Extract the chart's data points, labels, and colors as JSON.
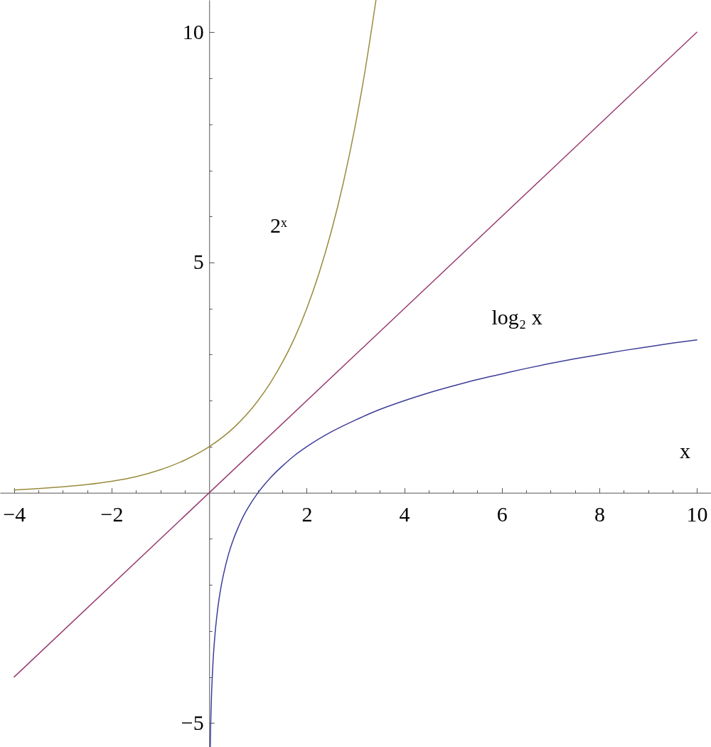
{
  "chart_data": {
    "type": "line",
    "xlabel": "x",
    "xlim": [
      -4.29,
      10.29
    ],
    "ylim": [
      -5.52,
      10.7
    ],
    "xticks": [
      {
        "value": -4,
        "label": "−4"
      },
      {
        "value": -3.5,
        "label": null
      },
      {
        "value": -3,
        "label": null
      },
      {
        "value": -2.5,
        "label": null
      },
      {
        "value": -2,
        "label": "−2"
      },
      {
        "value": -1.5,
        "label": null
      },
      {
        "value": -1,
        "label": null
      },
      {
        "value": -0.5,
        "label": null
      },
      {
        "value": 0.5,
        "label": null
      },
      {
        "value": 1,
        "label": null
      },
      {
        "value": 1.5,
        "label": null
      },
      2,
      {
        "value": 2.5,
        "label": null
      },
      {
        "value": 3,
        "label": null
      },
      {
        "value": 3.5,
        "label": null
      },
      4,
      {
        "value": 4.5,
        "label": null
      },
      {
        "value": 5,
        "label": null
      },
      {
        "value": 5.5,
        "label": null
      },
      6,
      {
        "value": 6.5,
        "label": null
      },
      {
        "value": 7,
        "label": null
      },
      {
        "value": 7.5,
        "label": null
      },
      8,
      {
        "value": 8.5,
        "label": null
      },
      {
        "value": 9,
        "label": null
      },
      {
        "value": 9.5,
        "label": null
      },
      10
    ],
    "yticks": [
      {
        "value": -5,
        "label": "−5"
      },
      {
        "value": -4,
        "label": null
      },
      {
        "value": -3,
        "label": null
      },
      {
        "value": -2,
        "label": null
      },
      {
        "value": -1,
        "label": null
      },
      {
        "value": 1,
        "label": null
      },
      {
        "value": 2,
        "label": null
      },
      {
        "value": 3,
        "label": null
      },
      {
        "value": 4,
        "label": null
      },
      5,
      {
        "value": 6,
        "label": null
      },
      {
        "value": 7,
        "label": null
      },
      {
        "value": 8,
        "label": null
      },
      {
        "value": 9,
        "label": null
      },
      10
    ],
    "series": [
      {
        "name": "log₂ x",
        "color": "#3d3d99",
        "x": [
          0.022,
          0.025,
          0.03,
          0.035,
          0.04,
          0.05,
          0.06,
          0.07,
          0.08,
          0.1,
          0.12,
          0.15,
          0.2,
          0.25,
          0.3,
          0.4,
          0.5,
          0.6,
          0.7,
          0.8,
          1,
          1.25,
          1.5,
          1.75,
          2,
          2.5,
          3,
          3.5,
          4,
          4.5,
          5,
          5.5,
          6,
          6.5,
          7,
          7.5,
          8,
          8.5,
          9,
          9.5,
          10
        ],
        "values": [
          -5.51,
          -5.32,
          -5.06,
          -4.84,
          -4.64,
          -4.32,
          -4.06,
          -3.84,
          -3.64,
          -3.32,
          -3.06,
          -2.74,
          -2.32,
          -2,
          -1.74,
          -1.32,
          -1,
          -0.74,
          -0.51,
          -0.32,
          0,
          0.32,
          0.58,
          0.81,
          1,
          1.32,
          1.58,
          1.81,
          2,
          2.17,
          2.32,
          2.46,
          2.58,
          2.7,
          2.81,
          2.91,
          3,
          3.09,
          3.17,
          3.25,
          3.32
        ]
      },
      {
        "color": "#993d71",
        "x": [
          -4,
          10
        ],
        "values": [
          -4,
          10
        ]
      },
      {
        "name": "2ˣ",
        "color": "#998b3d",
        "x": [
          -4,
          -3.5,
          -3,
          -2.5,
          -2,
          -1.5,
          -1,
          -0.5,
          0,
          0.5,
          1,
          1.25,
          1.5,
          1.75,
          2,
          2.25,
          2.5,
          2.75,
          3,
          3.2,
          3.42
        ],
        "values": [
          0.06,
          0.09,
          0.13,
          0.18,
          0.25,
          0.35,
          0.5,
          0.71,
          1,
          1.41,
          2,
          2.38,
          2.83,
          3.36,
          4,
          4.76,
          5.66,
          6.73,
          8,
          9.19,
          10.7
        ]
      }
    ]
  }
}
